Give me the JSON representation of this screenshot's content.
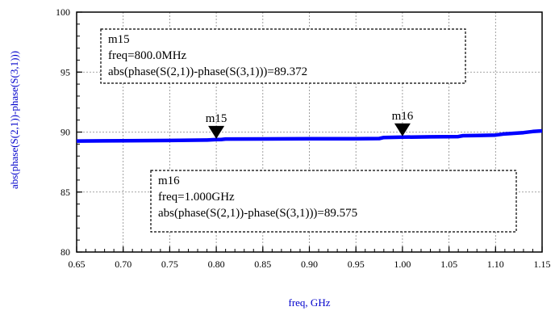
{
  "chart_data": {
    "type": "line",
    "xlabel": "freq, GHz",
    "ylabel": "abs(phase(S(2,1))-phase(S(3,1)))",
    "xlim": [
      0.65,
      1.15
    ],
    "ylim": [
      80,
      100
    ],
    "grid": true,
    "x_ticks": [
      "0.65",
      "0.70",
      "0.75",
      "0.80",
      "0.85",
      "0.90",
      "0.95",
      "1.00",
      "1.05",
      "1.10",
      "1.15"
    ],
    "y_ticks": [
      "80",
      "85",
      "90",
      "95",
      "100"
    ],
    "series": [
      {
        "color": "#0000ff",
        "x": [
          0.65,
          0.7,
          0.75,
          0.79,
          0.8,
          0.805,
          0.81,
          0.85,
          0.9,
          0.95,
          0.975,
          0.98,
          1.0,
          1.03,
          1.06,
          1.065,
          1.08,
          1.1,
          1.11,
          1.12,
          1.13,
          1.14,
          1.15
        ],
        "y": [
          89.25,
          89.27,
          89.3,
          89.33,
          89.372,
          89.38,
          89.42,
          89.43,
          89.44,
          89.45,
          89.46,
          89.55,
          89.575,
          89.6,
          89.62,
          89.7,
          89.72,
          89.75,
          89.85,
          89.9,
          89.95,
          90.05,
          90.1
        ]
      }
    ],
    "markers": [
      {
        "name": "m15",
        "x": 0.8,
        "y": 89.372,
        "box_lines": [
          "m15",
          "freq=800.0MHz",
          "abs(phase(S(2,1))-phase(S(3,1)))=89.372"
        ]
      },
      {
        "name": "m16",
        "x": 1.0,
        "y": 89.575,
        "box_lines": [
          "m16",
          "freq=1.000GHz",
          "abs(phase(S(2,1))-phase(S(3,1)))=89.575"
        ]
      }
    ]
  }
}
